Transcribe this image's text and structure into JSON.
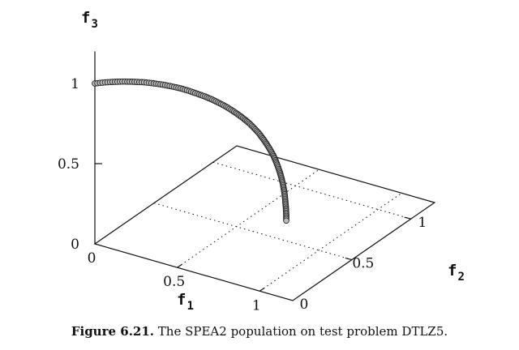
{
  "chart_data": {
    "type": "scatter",
    "projection": "3d",
    "axes": {
      "x": {
        "label": "f",
        "subscript": "1",
        "ticks": [
          "0",
          "0.5",
          "1"
        ],
        "range": [
          0,
          1.2
        ]
      },
      "y": {
        "label": "f",
        "subscript": "2",
        "ticks": [
          "0",
          "0.5",
          "1"
        ],
        "range": [
          0,
          1.2
        ]
      },
      "z": {
        "label": "f",
        "subscript": "3",
        "ticks": [
          "0",
          "0.5",
          "1"
        ],
        "range": [
          0,
          1.2
        ]
      }
    },
    "grid": true,
    "marker_color": "#bbbbbb",
    "series": [
      {
        "points": [
          [
            0.0,
            0.0,
            1.0
          ],
          [
            0.036,
            0.036,
            0.999
          ],
          [
            0.071,
            0.071,
            0.995
          ],
          [
            0.106,
            0.106,
            0.989
          ],
          [
            0.14,
            0.14,
            0.98
          ],
          [
            0.174,
            0.174,
            0.97
          ],
          [
            0.208,
            0.208,
            0.956
          ],
          [
            0.24,
            0.24,
            0.941
          ],
          [
            0.272,
            0.272,
            0.923
          ],
          [
            0.303,
            0.303,
            0.904
          ],
          [
            0.333,
            0.333,
            0.882
          ],
          [
            0.362,
            0.362,
            0.858
          ],
          [
            0.389,
            0.389,
            0.835
          ],
          [
            0.415,
            0.415,
            0.81
          ],
          [
            0.44,
            0.44,
            0.783
          ],
          [
            0.464,
            0.464,
            0.755
          ],
          [
            0.487,
            0.487,
            0.725
          ],
          [
            0.508,
            0.508,
            0.695
          ],
          [
            0.528,
            0.528,
            0.664
          ],
          [
            0.546,
            0.546,
            0.634
          ],
          [
            0.563,
            0.563,
            0.6
          ],
          [
            0.579,
            0.579,
            0.566
          ],
          [
            0.593,
            0.593,
            0.53
          ],
          [
            0.606,
            0.606,
            0.494
          ],
          [
            0.618,
            0.618,
            0.458
          ],
          [
            0.629,
            0.629,
            0.421
          ],
          [
            0.638,
            0.638,
            0.384
          ],
          [
            0.646,
            0.646,
            0.346
          ],
          [
            0.653,
            0.653,
            0.308
          ],
          [
            0.659,
            0.659,
            0.27
          ],
          [
            0.664,
            0.664,
            0.232
          ],
          [
            0.668,
            0.668,
            0.193
          ],
          [
            0.671,
            0.671,
            0.155
          ],
          [
            0.673,
            0.673,
            0.116
          ],
          [
            0.675,
            0.675,
            0.077
          ],
          [
            0.676,
            0.676,
            0.039
          ],
          [
            0.676,
            0.676,
            0.0
          ]
        ]
      }
    ]
  },
  "caption": {
    "label": "Figure 6.21.",
    "text": "The SPEA2 population on test problem DTLZ5."
  }
}
